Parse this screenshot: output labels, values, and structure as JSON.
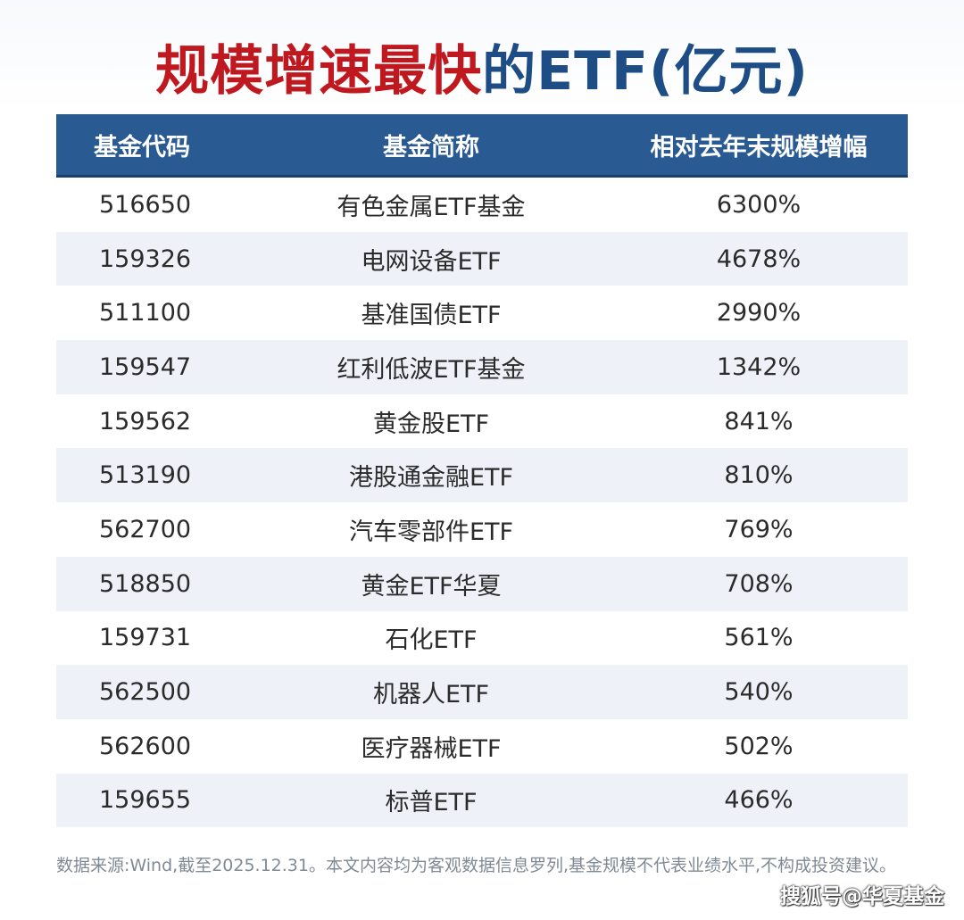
{
  "title": {
    "red_part": "规模增速最快",
    "blue_part": "的ETF(亿元)"
  },
  "table": {
    "headers": [
      "基金代码",
      "基金简称",
      "相对去年末规模增幅"
    ],
    "rows": [
      [
        "516650",
        "有色金属ETF基金",
        "6300%"
      ],
      [
        "159326",
        "电网设备ETF",
        "4678%"
      ],
      [
        "511100",
        "基准国债ETF",
        "2990%"
      ],
      [
        "159547",
        "红利低波ETF基金",
        "1342%"
      ],
      [
        "159562",
        "黄金股ETF",
        "841%"
      ],
      [
        "513190",
        "港股通金融ETF",
        "810%"
      ],
      [
        "562700",
        "汽车零部件ETF",
        "769%"
      ],
      [
        "518850",
        "黄金ETF华夏",
        "708%"
      ],
      [
        "159731",
        "石化ETF",
        "561%"
      ],
      [
        "562500",
        "机器人ETF",
        "540%"
      ],
      [
        "562600",
        "医疗器械ETF",
        "502%"
      ],
      [
        "159655",
        "标普ETF",
        "466%"
      ]
    ]
  },
  "footnote": "数据来源:Wind,截至2025.12.31。本文内容均为客观数据信息罗列,基金规模不代表业绩水平,不构成投资建议。",
  "watermark": "搜狐号@华夏基金",
  "colors": {
    "title_red": "#c0181f",
    "title_blue": "#1d4d84",
    "header_bg": "#2a5a92",
    "row_alt_bg": "#eef2f8"
  }
}
